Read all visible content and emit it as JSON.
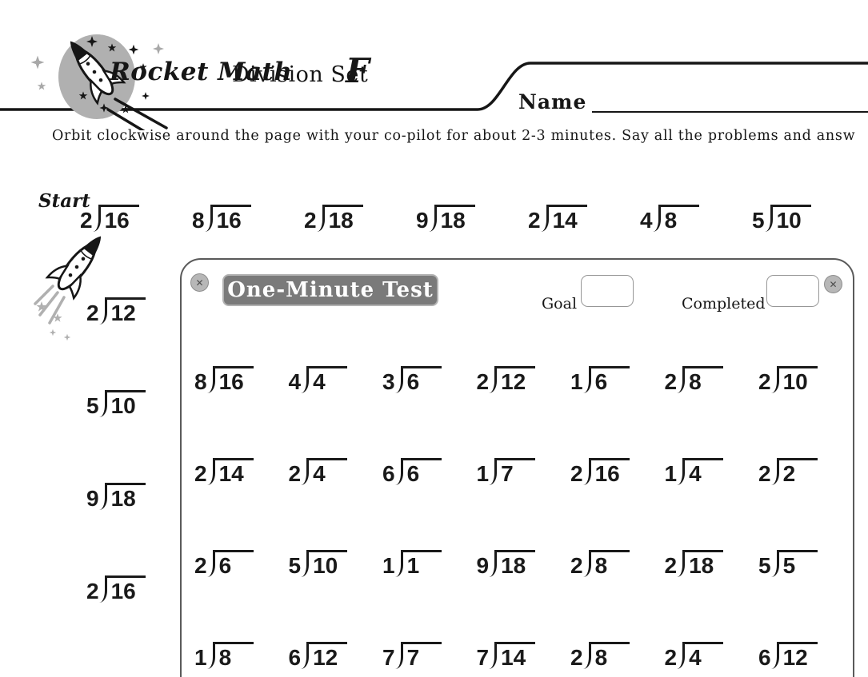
{
  "header": {
    "brand": "Rocket Math",
    "worksheet_title": "Division Set",
    "set_letter": "F",
    "name_label": "Name"
  },
  "instructions": "Orbit clockwise around the page with your co-pilot for about 2-3 minutes. Say all the problems and answ",
  "start_label": "Start",
  "outer_problems": {
    "top_row": [
      {
        "d": "2",
        "v": "16"
      },
      {
        "d": "8",
        "v": "16"
      },
      {
        "d": "2",
        "v": "18"
      },
      {
        "d": "9",
        "v": "18"
      },
      {
        "d": "2",
        "v": "14"
      },
      {
        "d": "4",
        "v": "8"
      },
      {
        "d": "5",
        "v": "10"
      }
    ],
    "left_column": [
      {
        "d": "2",
        "v": "12"
      },
      {
        "d": "5",
        "v": "10"
      },
      {
        "d": "9",
        "v": "18"
      },
      {
        "d": "2",
        "v": "16"
      }
    ]
  },
  "one_minute_test": {
    "title": "One-Minute Test",
    "goal_label": "Goal",
    "goal_value": "",
    "completed_label": "Completed",
    "completed_value": "",
    "close_glyph": "✕",
    "rows": [
      [
        {
          "d": "8",
          "v": "16"
        },
        {
          "d": "4",
          "v": "4"
        },
        {
          "d": "3",
          "v": "6"
        },
        {
          "d": "2",
          "v": "12"
        },
        {
          "d": "1",
          "v": "6"
        },
        {
          "d": "2",
          "v": "8"
        },
        {
          "d": "2",
          "v": "10"
        }
      ],
      [
        {
          "d": "2",
          "v": "14"
        },
        {
          "d": "2",
          "v": "4"
        },
        {
          "d": "6",
          "v": "6"
        },
        {
          "d": "1",
          "v": "7"
        },
        {
          "d": "2",
          "v": "16"
        },
        {
          "d": "1",
          "v": "4"
        },
        {
          "d": "2",
          "v": "2"
        }
      ],
      [
        {
          "d": "2",
          "v": "6"
        },
        {
          "d": "5",
          "v": "10"
        },
        {
          "d": "1",
          "v": "1"
        },
        {
          "d": "9",
          "v": "18"
        },
        {
          "d": "2",
          "v": "8"
        },
        {
          "d": "2",
          "v": "18"
        },
        {
          "d": "5",
          "v": "5"
        }
      ],
      [
        {
          "d": "1",
          "v": "8"
        },
        {
          "d": "6",
          "v": "12"
        },
        {
          "d": "7",
          "v": "7"
        },
        {
          "d": "7",
          "v": "14"
        },
        {
          "d": "2",
          "v": "8"
        },
        {
          "d": "2",
          "v": "4"
        },
        {
          "d": "6",
          "v": "12"
        }
      ]
    ]
  },
  "colors": {
    "ink": "#1a1a1a",
    "accent_gray": "#b0b0b0",
    "badge_gray": "#7a7a7a",
    "badge_border": "#b2b2b2"
  }
}
